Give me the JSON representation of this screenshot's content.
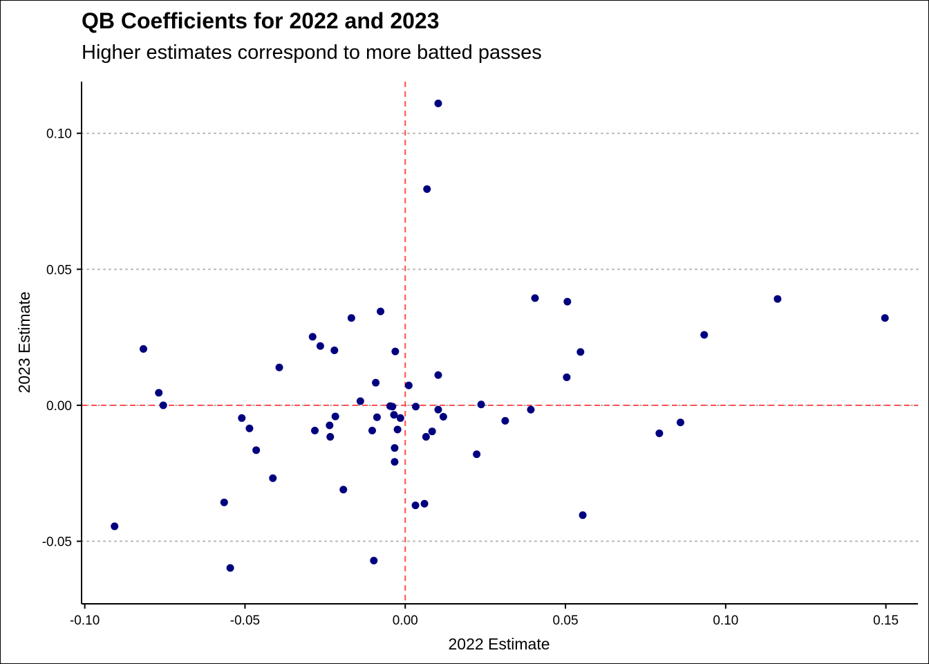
{
  "chart_data": {
    "type": "scatter",
    "title": "QB Coefficients for 2022 and 2023",
    "subtitle": "Higher estimates correspond to more batted passes",
    "xlabel": "2022 Estimate",
    "ylabel": "2023 Estimate",
    "xlim": [
      -0.101,
      0.16
    ],
    "ylim": [
      -0.073,
      0.119
    ],
    "xticks": [
      -0.1,
      -0.05,
      0.0,
      0.05,
      0.1,
      0.15
    ],
    "xtick_labels": [
      "-0.10",
      "-0.05",
      "0.00",
      "0.05",
      "0.10",
      "0.15"
    ],
    "yticks": [
      -0.05,
      0.0,
      0.05,
      0.1
    ],
    "ytick_labels": [
      "-0.05",
      "0.00",
      "0.05",
      "0.10"
    ],
    "grid": "horizontal dotted at y ticks",
    "reference_lines": {
      "x": 0,
      "y": 0,
      "color": "#ff4d4d"
    },
    "point_color": "#00007f",
    "points": [
      {
        "x": 0.0103,
        "y": 0.111
      },
      {
        "x": 0.0068,
        "y": 0.0795
      },
      {
        "x": 0.1497,
        "y": 0.0321
      },
      {
        "x": 0.1162,
        "y": 0.0391
      },
      {
        "x": 0.0933,
        "y": 0.0259
      },
      {
        "x": 0.0405,
        "y": 0.0394
      },
      {
        "x": 0.0506,
        "y": 0.0381
      },
      {
        "x": 0.0547,
        "y": 0.0196
      },
      {
        "x": 0.0504,
        "y": 0.0103
      },
      {
        "x": 0.0859,
        "y": -0.0063
      },
      {
        "x": 0.0793,
        "y": -0.0103
      },
      {
        "x": 0.0554,
        "y": -0.0404
      },
      {
        "x": 0.0392,
        "y": -0.0016
      },
      {
        "x": 0.0312,
        "y": -0.0057
      },
      {
        "x": 0.0237,
        "y": 0.0003
      },
      {
        "x": 0.0223,
        "y": -0.018
      },
      {
        "x": 0.0103,
        "y": 0.0111
      },
      {
        "x": 0.0011,
        "y": 0.0073
      },
      {
        "x": 0.0103,
        "y": -0.0016
      },
      {
        "x": 0.0119,
        "y": -0.0042
      },
      {
        "x": 0.0084,
        "y": -0.0096
      },
      {
        "x": 0.0065,
        "y": -0.0116
      },
      {
        "x": 0.0033,
        "y": -0.0005
      },
      {
        "x": 0.006,
        "y": -0.0362
      },
      {
        "x": 0.0032,
        "y": -0.0368
      },
      {
        "x": -0.0015,
        "y": -0.0047
      },
      {
        "x": -0.0024,
        "y": -0.0089
      },
      {
        "x": -0.0031,
        "y": 0.0198
      },
      {
        "x": -0.0033,
        "y": -0.0157
      },
      {
        "x": -0.0033,
        "y": -0.0208
      },
      {
        "x": -0.0035,
        "y": -0.0035
      },
      {
        "x": -0.004,
        "y": -0.0005
      },
      {
        "x": -0.0047,
        "y": -0.0003
      },
      {
        "x": -0.0077,
        "y": 0.0345
      },
      {
        "x": -0.0088,
        "y": -0.0044
      },
      {
        "x": -0.0092,
        "y": 0.0083
      },
      {
        "x": -0.0103,
        "y": -0.0093
      },
      {
        "x": -0.0098,
        "y": -0.0571
      },
      {
        "x": -0.014,
        "y": 0.0015
      },
      {
        "x": -0.0168,
        "y": 0.0321
      },
      {
        "x": -0.0193,
        "y": -0.031
      },
      {
        "x": -0.0221,
        "y": 0.0202
      },
      {
        "x": -0.0218,
        "y": -0.0041
      },
      {
        "x": -0.0234,
        "y": -0.0116
      },
      {
        "x": -0.0236,
        "y": -0.0074
      },
      {
        "x": -0.0265,
        "y": 0.0218
      },
      {
        "x": -0.0282,
        "y": -0.0093
      },
      {
        "x": -0.0289,
        "y": 0.0252
      },
      {
        "x": -0.0393,
        "y": 0.0139
      },
      {
        "x": -0.0413,
        "y": -0.0268
      },
      {
        "x": -0.0465,
        "y": -0.0165
      },
      {
        "x": -0.0486,
        "y": -0.0085
      },
      {
        "x": -0.051,
        "y": -0.0047
      },
      {
        "x": -0.0546,
        "y": -0.0598
      },
      {
        "x": -0.0565,
        "y": -0.0357
      },
      {
        "x": -0.0755,
        "y": 0.0
      },
      {
        "x": -0.0769,
        "y": 0.0046
      },
      {
        "x": -0.0817,
        "y": 0.0207
      },
      {
        "x": -0.0907,
        "y": -0.0445
      }
    ]
  }
}
